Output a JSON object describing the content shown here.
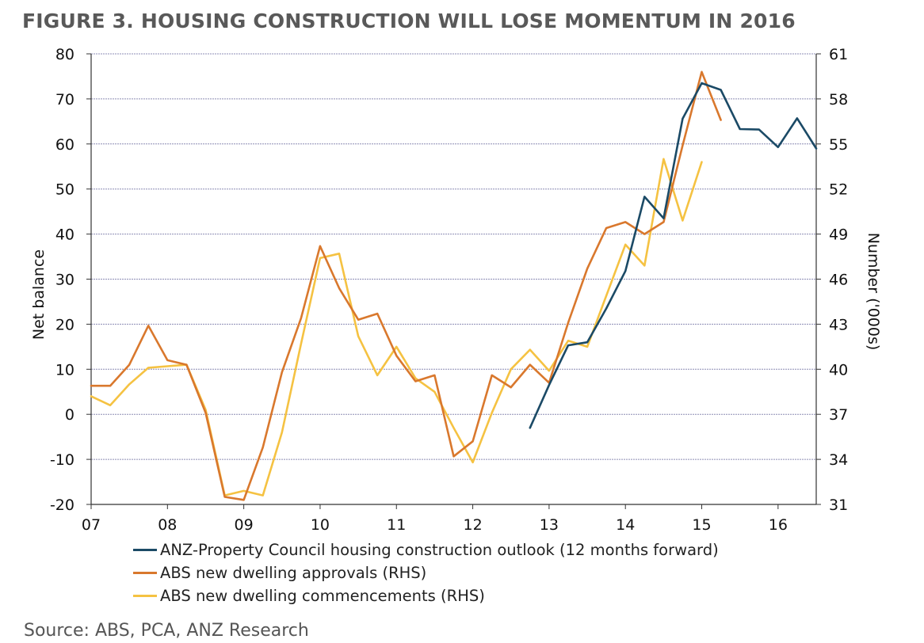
{
  "title": "FIGURE 3. HOUSING CONSTRUCTION WILL LOSE MOMENTUM IN 2016",
  "source": "Source: ABS, PCA, ANZ Research",
  "colors": {
    "outlook": "#1b4a66",
    "approvals": "#d9782d",
    "commencements": "#f5c242",
    "grid": "#8c8cb4"
  },
  "chart_data": {
    "type": "line",
    "xlabel": "",
    "ylabel": "Net balance",
    "y2label": "Number ('000s)",
    "x_ticks": [
      "07",
      "08",
      "09",
      "10",
      "11",
      "12",
      "13",
      "14",
      "15",
      "16"
    ],
    "xlim": [
      2007,
      2016.5
    ],
    "ylim": [
      -20,
      80
    ],
    "y_ticks": [
      -20,
      -10,
      0,
      10,
      20,
      30,
      40,
      50,
      60,
      70,
      80
    ],
    "y2lim": [
      31,
      61
    ],
    "y2_ticks": [
      31,
      34,
      37,
      40,
      43,
      46,
      49,
      52,
      55,
      58,
      61
    ],
    "grid": true,
    "legend_position": "bottom",
    "series": [
      {
        "name": "ANZ-Property Council housing construction outlook (12 months forward)",
        "axis": "left",
        "color_key": "outlook",
        "x": [
          2012.75,
          2013.0,
          2013.25,
          2013.5,
          2013.75,
          2014.0,
          2014.25,
          2014.5,
          2014.75,
          2015.0,
          2015.25,
          2015.5,
          2015.75,
          2016.0,
          2016.25,
          2016.5
        ],
        "y": [
          -3,
          6.5,
          15.3,
          16,
          23.5,
          31.8,
          48.3,
          43.5,
          65.6,
          73.5,
          72,
          63.3,
          63.2,
          59.3,
          65.7,
          59
        ]
      },
      {
        "name": "ABS new dwelling approvals (RHS)",
        "axis": "right",
        "color_key": "approvals",
        "x": [
          2007.0,
          2007.25,
          2007.5,
          2007.75,
          2008.0,
          2008.25,
          2008.5,
          2008.75,
          2009.0,
          2009.25,
          2009.5,
          2009.75,
          2010.0,
          2010.25,
          2010.5,
          2010.75,
          2011.0,
          2011.25,
          2011.5,
          2011.75,
          2012.0,
          2012.25,
          2012.5,
          2012.75,
          2013.0,
          2013.25,
          2013.5,
          2013.75,
          2014.0,
          2014.25,
          2014.5,
          2014.75,
          2015.0,
          2015.25
        ],
        "y": [
          38.9,
          38.9,
          40.3,
          42.9,
          40.6,
          40.3,
          37.1,
          31.5,
          31.3,
          34.8,
          39.8,
          43.4,
          48.2,
          45.4,
          43.3,
          43.7,
          40.9,
          39.2,
          39.6,
          34.2,
          35.2,
          39.6,
          38.8,
          40.3,
          39.1,
          43.1,
          46.7,
          49.4,
          49.8,
          49.0,
          49.8,
          54.9,
          59.8,
          56.6
        ]
      },
      {
        "name": "ABS new dwelling commencements (RHS)",
        "axis": "right",
        "color_key": "commencements",
        "x": [
          2007.0,
          2007.25,
          2007.5,
          2007.75,
          2008.0,
          2008.25,
          2008.5,
          2008.75,
          2009.0,
          2009.25,
          2009.5,
          2009.75,
          2010.0,
          2010.25,
          2010.5,
          2010.75,
          2011.0,
          2011.25,
          2011.5,
          2011.75,
          2012.0,
          2012.25,
          2012.5,
          2012.75,
          2013.0,
          2013.25,
          2013.5,
          2013.75,
          2014.0,
          2014.25,
          2014.5,
          2014.75,
          2015.0
        ],
        "y": [
          38.2,
          37.6,
          39.0,
          40.1,
          40.2,
          40.3,
          37.3,
          31.6,
          31.9,
          31.6,
          35.8,
          41.7,
          47.4,
          47.7,
          42.2,
          39.6,
          41.5,
          39.4,
          38.5,
          36.1,
          33.8,
          37.1,
          40.0,
          41.3,
          39.9,
          41.9,
          41.5,
          44.9,
          48.3,
          46.9,
          54.0,
          49.9,
          53.8
        ]
      }
    ]
  }
}
